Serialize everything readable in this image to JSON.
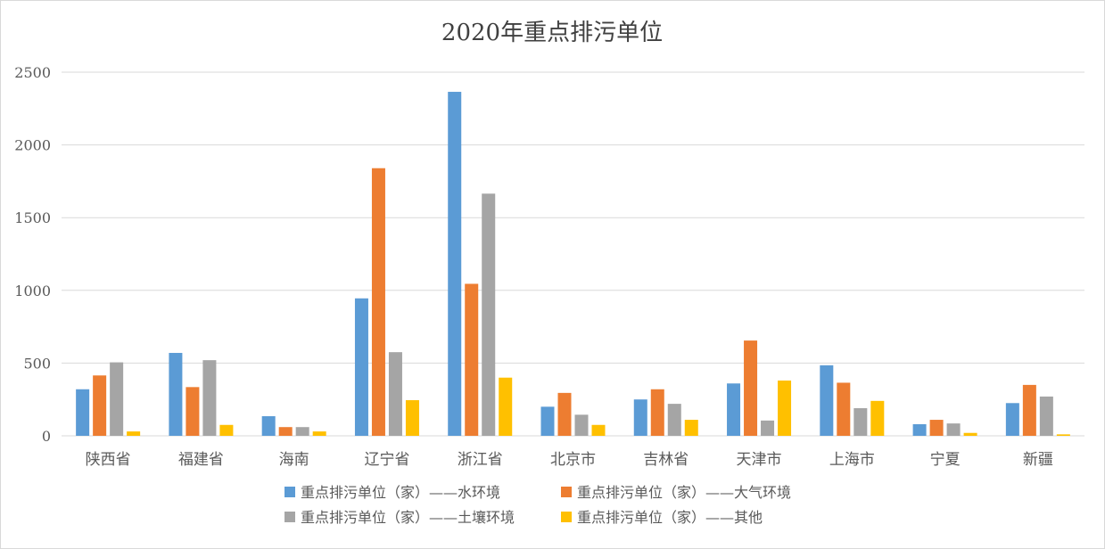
{
  "chart_data": {
    "type": "bar",
    "title": "2020年重点排污单位",
    "xlabel": "",
    "ylabel": "",
    "ylim": [
      0,
      2500
    ],
    "yticks": [
      0,
      500,
      1000,
      1500,
      2000,
      2500
    ],
    "grid": true,
    "legend_position": "bottom",
    "categories": [
      "陕西省",
      "福建省",
      "海南",
      "辽宁省",
      "浙江省",
      "北京市",
      "吉林省",
      "天津市",
      "上海市",
      "宁夏",
      "新疆"
    ],
    "series": [
      {
        "name": "重点排污单位（家）——水环境",
        "color": "#5b9bd5",
        "values": [
          320,
          570,
          135,
          945,
          2365,
          200,
          250,
          360,
          485,
          80,
          225
        ]
      },
      {
        "name": "重点排污单位（家）——大气环境",
        "color": "#ed7d31",
        "values": [
          415,
          335,
          60,
          1840,
          1045,
          295,
          320,
          655,
          365,
          110,
          350
        ]
      },
      {
        "name": "重点排污单位（家）——土壤环境",
        "color": "#a5a5a5",
        "values": [
          505,
          520,
          60,
          575,
          1665,
          145,
          220,
          105,
          190,
          85,
          270
        ]
      },
      {
        "name": "重点排污单位（家）——其他",
        "color": "#ffc000",
        "values": [
          30,
          75,
          30,
          245,
          400,
          75,
          110,
          380,
          240,
          20,
          10
        ]
      }
    ]
  },
  "colors": {
    "grid": "#d9d9d9",
    "axis": "#d9d9d9",
    "text": "#595959",
    "title": "#404040"
  }
}
